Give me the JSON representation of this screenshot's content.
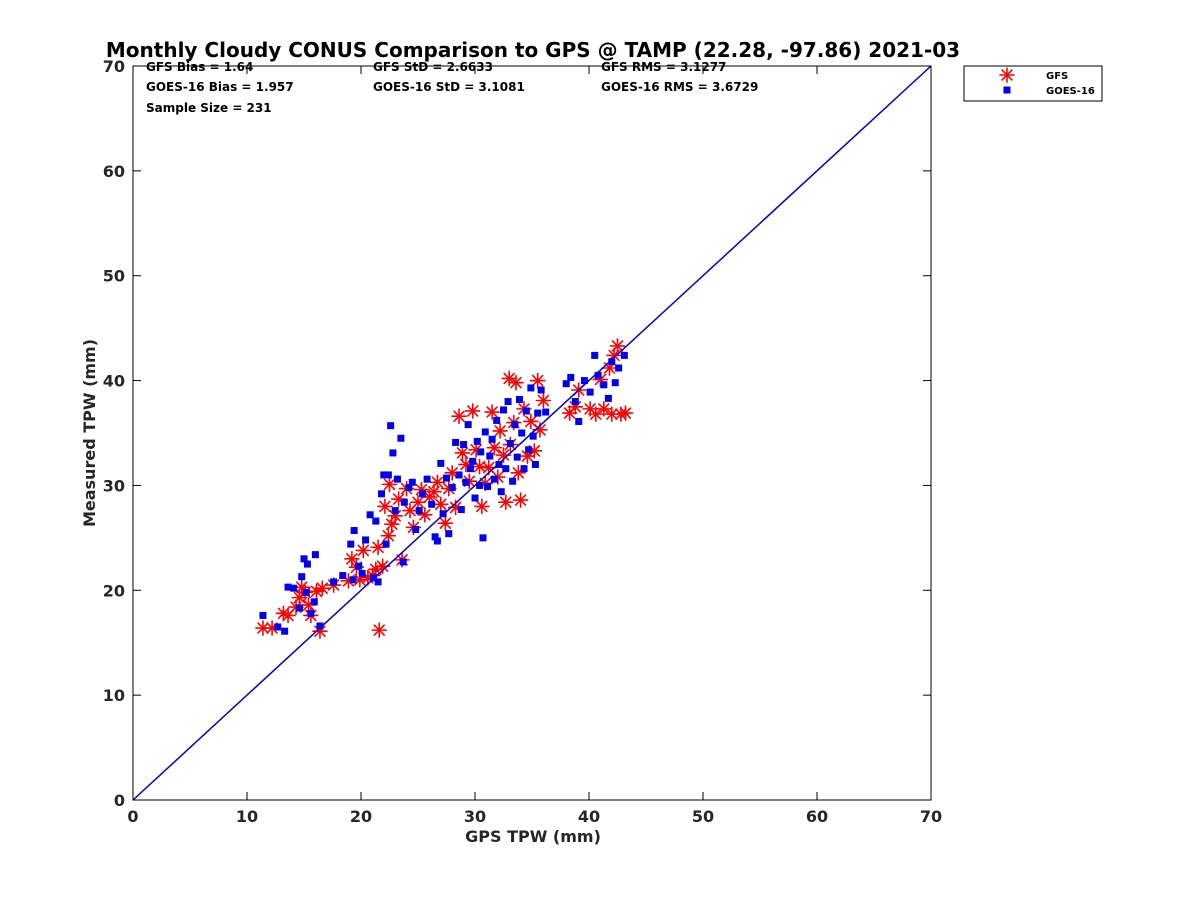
{
  "chart_data": {
    "type": "scatter",
    "title": "Monthly Cloudy CONUS Comparison to GPS @ TAMP (22.28, -97.86) 2021-03",
    "xlabel": "GPS TPW (mm)",
    "ylabel": "Measured TPW (mm)",
    "xlim": [
      0,
      70
    ],
    "ylim": [
      0,
      70
    ],
    "xticks": [
      0,
      10,
      20,
      30,
      40,
      50,
      60,
      70
    ],
    "yticks": [
      0,
      10,
      20,
      30,
      40,
      50,
      60,
      70
    ],
    "grid": false,
    "legend_position": "top-right, outside axes",
    "stats": {
      "gfs_bias": "GFS Bias = 1.64",
      "goes_bias": "GOES-16 Bias = 1.957",
      "sample_size": "Sample Size = 231",
      "gfs_std": "GFS StD = 2.6633",
      "goes_std": "GOES-16 StD = 3.1081",
      "gfs_rms": "GFS RMS = 3.1277",
      "goes_rms": "GOES-16 RMS = 3.6729"
    },
    "reference_line": {
      "x": [
        0,
        70
      ],
      "y": [
        0,
        70
      ],
      "color": "#0000cc"
    },
    "series": [
      {
        "name": "GFS",
        "marker": "asterisk",
        "color": "#ff0000",
        "points": [
          [
            11.4,
            16.4
          ],
          [
            12.2,
            16.4
          ],
          [
            13.2,
            17.8
          ],
          [
            13.6,
            17.6
          ],
          [
            14.3,
            18.4
          ],
          [
            14.6,
            19.3
          ],
          [
            14.8,
            20.3
          ],
          [
            15.1,
            19.8
          ],
          [
            15.4,
            18.6
          ],
          [
            15.6,
            17.6
          ],
          [
            16.1,
            19.9
          ],
          [
            16.4,
            16.1
          ],
          [
            16.6,
            20.2
          ],
          [
            17.6,
            20.5
          ],
          [
            18.9,
            20.9
          ],
          [
            19.2,
            23.0
          ],
          [
            19.6,
            22.2
          ],
          [
            19.9,
            21.0
          ],
          [
            20.2,
            23.8
          ],
          [
            20.6,
            21.2
          ],
          [
            21.0,
            21.4
          ],
          [
            21.3,
            22.0
          ],
          [
            21.6,
            16.2
          ],
          [
            21.5,
            24.1
          ],
          [
            21.9,
            22.3
          ],
          [
            22.1,
            28.0
          ],
          [
            22.4,
            25.2
          ],
          [
            22.7,
            26.3
          ],
          [
            23.0,
            27.1
          ],
          [
            22.5,
            30.1
          ],
          [
            23.3,
            28.7
          ],
          [
            23.6,
            22.9
          ],
          [
            24.0,
            29.7
          ],
          [
            24.3,
            27.6
          ],
          [
            24.6,
            26.0
          ],
          [
            25.0,
            28.4
          ],
          [
            25.3,
            29.6
          ],
          [
            25.6,
            27.2
          ],
          [
            26.0,
            28.9
          ],
          [
            26.4,
            29.4
          ],
          [
            26.7,
            30.3
          ],
          [
            27.0,
            28.2
          ],
          [
            27.4,
            26.4
          ],
          [
            27.7,
            29.7
          ],
          [
            28.0,
            31.2
          ],
          [
            28.3,
            27.9
          ],
          [
            28.6,
            36.6
          ],
          [
            28.9,
            33.1
          ],
          [
            29.2,
            32.0
          ],
          [
            29.5,
            30.4
          ],
          [
            29.8,
            37.1
          ],
          [
            30.1,
            33.4
          ],
          [
            30.4,
            31.8
          ],
          [
            30.6,
            28.0
          ],
          [
            30.9,
            30.2
          ],
          [
            31.2,
            31.7
          ],
          [
            31.5,
            37.0
          ],
          [
            31.7,
            33.6
          ],
          [
            32.0,
            30.8
          ],
          [
            32.2,
            35.2
          ],
          [
            32.5,
            32.9
          ],
          [
            32.7,
            28.4
          ],
          [
            33.0,
            40.2
          ],
          [
            33.1,
            33.9
          ],
          [
            33.4,
            36.0
          ],
          [
            33.6,
            39.8
          ],
          [
            33.8,
            31.2
          ],
          [
            34.0,
            28.6
          ],
          [
            34.3,
            37.3
          ],
          [
            34.6,
            32.8
          ],
          [
            34.9,
            36.1
          ],
          [
            35.2,
            33.3
          ],
          [
            35.5,
            40.0
          ],
          [
            35.7,
            35.3
          ],
          [
            36.0,
            38.1
          ],
          [
            38.3,
            36.9
          ],
          [
            38.8,
            37.5
          ],
          [
            39.1,
            39.1
          ],
          [
            40.1,
            37.3
          ],
          [
            40.6,
            36.8
          ],
          [
            41.0,
            40.1
          ],
          [
            41.3,
            37.3
          ],
          [
            41.8,
            41.2
          ],
          [
            42.0,
            36.8
          ],
          [
            42.2,
            42.4
          ],
          [
            42.5,
            43.3
          ],
          [
            42.8,
            36.8
          ],
          [
            43.2,
            36.9
          ]
        ]
      },
      {
        "name": "GOES-16",
        "marker": "square",
        "color": "#0000ee",
        "points": [
          [
            11.4,
            17.6
          ],
          [
            12.7,
            16.5
          ],
          [
            13.3,
            16.1
          ],
          [
            13.6,
            20.3
          ],
          [
            14.1,
            20.2
          ],
          [
            14.6,
            18.3
          ],
          [
            14.8,
            21.3
          ],
          [
            15.0,
            23.0
          ],
          [
            15.2,
            19.8
          ],
          [
            15.3,
            22.5
          ],
          [
            15.6,
            17.8
          ],
          [
            15.9,
            18.9
          ],
          [
            16.0,
            23.4
          ],
          [
            16.4,
            16.6
          ],
          [
            17.6,
            20.8
          ],
          [
            18.4,
            21.4
          ],
          [
            19.1,
            24.4
          ],
          [
            19.3,
            21.0
          ],
          [
            19.4,
            25.7
          ],
          [
            19.8,
            22.3
          ],
          [
            20.1,
            21.6
          ],
          [
            20.4,
            24.8
          ],
          [
            20.8,
            27.2
          ],
          [
            21.1,
            21.2
          ],
          [
            21.3,
            26.6
          ],
          [
            21.5,
            20.8
          ],
          [
            21.8,
            29.2
          ],
          [
            22.0,
            31.0
          ],
          [
            22.2,
            24.4
          ],
          [
            22.4,
            31.0
          ],
          [
            22.6,
            35.7
          ],
          [
            22.8,
            33.1
          ],
          [
            23.0,
            27.6
          ],
          [
            23.2,
            30.6
          ],
          [
            23.5,
            34.5
          ],
          [
            23.7,
            22.7
          ],
          [
            23.8,
            28.4
          ],
          [
            24.2,
            29.8
          ],
          [
            24.5,
            30.3
          ],
          [
            24.8,
            25.8
          ],
          [
            25.1,
            27.6
          ],
          [
            25.4,
            29.2
          ],
          [
            25.8,
            30.6
          ],
          [
            26.2,
            28.2
          ],
          [
            26.5,
            25.1
          ],
          [
            26.7,
            24.7
          ],
          [
            27.0,
            32.1
          ],
          [
            27.2,
            27.3
          ],
          [
            27.5,
            30.7
          ],
          [
            27.7,
            25.4
          ],
          [
            28.0,
            29.8
          ],
          [
            28.3,
            34.1
          ],
          [
            28.6,
            31.0
          ],
          [
            28.8,
            27.7
          ],
          [
            29.0,
            33.9
          ],
          [
            29.2,
            30.3
          ],
          [
            29.4,
            35.8
          ],
          [
            29.6,
            31.6
          ],
          [
            29.8,
            32.3
          ],
          [
            30.0,
            28.8
          ],
          [
            30.2,
            34.2
          ],
          [
            30.4,
            30.0
          ],
          [
            30.5,
            33.2
          ],
          [
            30.7,
            25.0
          ],
          [
            30.9,
            35.1
          ],
          [
            31.1,
            29.9
          ],
          [
            31.3,
            32.8
          ],
          [
            31.5,
            34.4
          ],
          [
            31.7,
            30.6
          ],
          [
            31.9,
            36.2
          ],
          [
            32.1,
            32.0
          ],
          [
            32.3,
            29.4
          ],
          [
            32.5,
            37.2
          ],
          [
            32.7,
            31.6
          ],
          [
            32.9,
            38.0
          ],
          [
            33.1,
            34.0
          ],
          [
            33.3,
            30.4
          ],
          [
            33.5,
            35.8
          ],
          [
            33.7,
            32.7
          ],
          [
            33.9,
            38.2
          ],
          [
            34.1,
            35.0
          ],
          [
            34.3,
            31.6
          ],
          [
            34.5,
            37.1
          ],
          [
            34.7,
            33.4
          ],
          [
            34.9,
            39.3
          ],
          [
            35.1,
            34.7
          ],
          [
            35.3,
            32.0
          ],
          [
            35.5,
            36.9
          ],
          [
            35.8,
            39.1
          ],
          [
            36.2,
            37.0
          ],
          [
            38.0,
            39.7
          ],
          [
            38.4,
            40.3
          ],
          [
            38.8,
            38.0
          ],
          [
            39.1,
            36.1
          ],
          [
            39.6,
            40.0
          ],
          [
            40.1,
            38.9
          ],
          [
            40.5,
            42.4
          ],
          [
            40.8,
            40.5
          ],
          [
            41.3,
            39.6
          ],
          [
            41.7,
            38.3
          ],
          [
            42.0,
            41.8
          ],
          [
            42.3,
            39.8
          ],
          [
            42.6,
            41.2
          ],
          [
            43.1,
            42.4
          ]
        ]
      }
    ]
  }
}
